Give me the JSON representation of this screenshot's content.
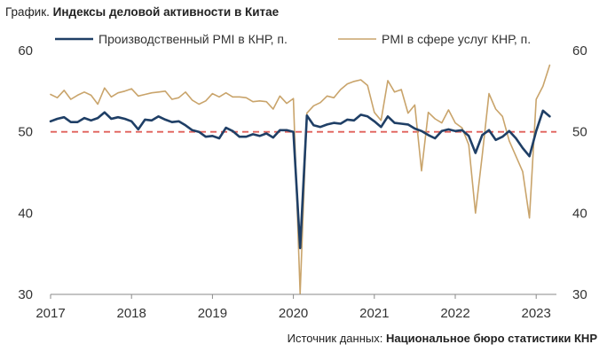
{
  "title": {
    "prefix": "График.",
    "text": "Индексы деловой активности в Китае"
  },
  "source": {
    "prefix": "Источник данных:",
    "text": "Национальное бюро статистики КНР"
  },
  "colors": {
    "manufacturing": "#1f3f66",
    "services": "#c9a46b",
    "threshold": "#e0605a"
  },
  "chart_data": {
    "type": "line",
    "title": "Индексы деловой активности в Китае",
    "xlabel": "",
    "ylabel": "",
    "ylim": [
      30,
      60
    ],
    "xlim": [
      2017.0,
      2023.25
    ],
    "grid": false,
    "legend_position": "top",
    "x_ticks": [
      "2017",
      "2018",
      "2019",
      "2020",
      "2021",
      "2022",
      "2023"
    ],
    "y_ticks_left": [
      "60",
      "50",
      "40",
      "30"
    ],
    "y_ticks_right": [
      "60",
      "50",
      "40",
      "30"
    ],
    "reference_line": {
      "value": 50,
      "style": "dashed"
    },
    "series": [
      {
        "name": "Производственный PMI в КНР, п.",
        "color": "#1f3f66",
        "points": [
          [
            "2017-01",
            51.3
          ],
          [
            "2017-02",
            51.6
          ],
          [
            "2017-03",
            51.8
          ],
          [
            "2017-04",
            51.2
          ],
          [
            "2017-05",
            51.2
          ],
          [
            "2017-06",
            51.7
          ],
          [
            "2017-07",
            51.4
          ],
          [
            "2017-08",
            51.7
          ],
          [
            "2017-09",
            52.4
          ],
          [
            "2017-10",
            51.6
          ],
          [
            "2017-11",
            51.8
          ],
          [
            "2017-12",
            51.6
          ],
          [
            "2018-01",
            51.3
          ],
          [
            "2018-02",
            50.3
          ],
          [
            "2018-03",
            51.5
          ],
          [
            "2018-04",
            51.4
          ],
          [
            "2018-05",
            51.9
          ],
          [
            "2018-06",
            51.5
          ],
          [
            "2018-07",
            51.2
          ],
          [
            "2018-08",
            51.3
          ],
          [
            "2018-09",
            50.8
          ],
          [
            "2018-10",
            50.2
          ],
          [
            "2018-11",
            50.0
          ],
          [
            "2018-12",
            49.4
          ],
          [
            "2019-01",
            49.5
          ],
          [
            "2019-02",
            49.2
          ],
          [
            "2019-03",
            50.5
          ],
          [
            "2019-04",
            50.1
          ],
          [
            "2019-05",
            49.4
          ],
          [
            "2019-06",
            49.4
          ],
          [
            "2019-07",
            49.7
          ],
          [
            "2019-08",
            49.5
          ],
          [
            "2019-09",
            49.8
          ],
          [
            "2019-10",
            49.3
          ],
          [
            "2019-11",
            50.2
          ],
          [
            "2019-12",
            50.2
          ],
          [
            "2020-01",
            50.0
          ],
          [
            "2020-02",
            35.7
          ],
          [
            "2020-03",
            52.0
          ],
          [
            "2020-04",
            50.8
          ],
          [
            "2020-05",
            50.6
          ],
          [
            "2020-06",
            50.9
          ],
          [
            "2020-07",
            51.1
          ],
          [
            "2020-08",
            51.0
          ],
          [
            "2020-09",
            51.5
          ],
          [
            "2020-10",
            51.4
          ],
          [
            "2020-11",
            52.1
          ],
          [
            "2020-12",
            51.9
          ],
          [
            "2021-01",
            51.3
          ],
          [
            "2021-02",
            50.6
          ],
          [
            "2021-03",
            51.9
          ],
          [
            "2021-04",
            51.1
          ],
          [
            "2021-05",
            51.0
          ],
          [
            "2021-06",
            50.9
          ],
          [
            "2021-07",
            50.4
          ],
          [
            "2021-08",
            50.1
          ],
          [
            "2021-09",
            49.6
          ],
          [
            "2021-10",
            49.2
          ],
          [
            "2021-11",
            50.1
          ],
          [
            "2021-12",
            50.3
          ],
          [
            "2022-01",
            50.1
          ],
          [
            "2022-02",
            50.2
          ],
          [
            "2022-03",
            49.5
          ],
          [
            "2022-04",
            47.4
          ],
          [
            "2022-05",
            49.6
          ],
          [
            "2022-06",
            50.2
          ],
          [
            "2022-07",
            49.0
          ],
          [
            "2022-08",
            49.4
          ],
          [
            "2022-09",
            50.1
          ],
          [
            "2022-10",
            49.2
          ],
          [
            "2022-11",
            48.0
          ],
          [
            "2022-12",
            47.0
          ],
          [
            "2023-01",
            50.1
          ],
          [
            "2023-02",
            52.6
          ],
          [
            "2023-03",
            51.9
          ]
        ]
      },
      {
        "name": "PMI в сфере услуг КНР, п.",
        "color": "#c9a46b",
        "points": [
          [
            "2017-01",
            54.6
          ],
          [
            "2017-02",
            54.2
          ],
          [
            "2017-03",
            55.1
          ],
          [
            "2017-04",
            54.0
          ],
          [
            "2017-05",
            54.5
          ],
          [
            "2017-06",
            54.9
          ],
          [
            "2017-07",
            54.5
          ],
          [
            "2017-08",
            53.4
          ],
          [
            "2017-09",
            55.4
          ],
          [
            "2017-10",
            54.3
          ],
          [
            "2017-11",
            54.8
          ],
          [
            "2017-12",
            55.0
          ],
          [
            "2018-01",
            55.3
          ],
          [
            "2018-02",
            54.4
          ],
          [
            "2018-03",
            54.6
          ],
          [
            "2018-04",
            54.8
          ],
          [
            "2018-05",
            54.9
          ],
          [
            "2018-06",
            55.0
          ],
          [
            "2018-07",
            54.0
          ],
          [
            "2018-08",
            54.2
          ],
          [
            "2018-09",
            54.9
          ],
          [
            "2018-10",
            53.9
          ],
          [
            "2018-11",
            53.4
          ],
          [
            "2018-12",
            53.8
          ],
          [
            "2019-01",
            54.7
          ],
          [
            "2019-02",
            54.3
          ],
          [
            "2019-03",
            54.8
          ],
          [
            "2019-04",
            54.3
          ],
          [
            "2019-05",
            54.3
          ],
          [
            "2019-06",
            54.2
          ],
          [
            "2019-07",
            53.7
          ],
          [
            "2019-08",
            53.8
          ],
          [
            "2019-09",
            53.7
          ],
          [
            "2019-10",
            52.8
          ],
          [
            "2019-11",
            54.4
          ],
          [
            "2019-12",
            53.5
          ],
          [
            "2020-01",
            54.1
          ],
          [
            "2020-02",
            30.1
          ],
          [
            "2020-03",
            52.3
          ],
          [
            "2020-04",
            53.2
          ],
          [
            "2020-05",
            53.6
          ],
          [
            "2020-06",
            54.4
          ],
          [
            "2020-07",
            54.2
          ],
          [
            "2020-08",
            55.2
          ],
          [
            "2020-09",
            55.9
          ],
          [
            "2020-10",
            56.2
          ],
          [
            "2020-11",
            56.4
          ],
          [
            "2020-12",
            55.7
          ],
          [
            "2021-01",
            52.4
          ],
          [
            "2021-02",
            51.4
          ],
          [
            "2021-03",
            56.3
          ],
          [
            "2021-04",
            54.9
          ],
          [
            "2021-05",
            55.2
          ],
          [
            "2021-06",
            52.3
          ],
          [
            "2021-07",
            53.3
          ],
          [
            "2021-08",
            45.2
          ],
          [
            "2021-09",
            52.4
          ],
          [
            "2021-10",
            51.6
          ],
          [
            "2021-11",
            51.1
          ],
          [
            "2021-12",
            52.7
          ],
          [
            "2022-01",
            51.1
          ],
          [
            "2022-02",
            50.5
          ],
          [
            "2022-03",
            48.4
          ],
          [
            "2022-04",
            40.0
          ],
          [
            "2022-05",
            47.1
          ],
          [
            "2022-06",
            54.7
          ],
          [
            "2022-07",
            52.8
          ],
          [
            "2022-08",
            51.9
          ],
          [
            "2022-09",
            48.9
          ],
          [
            "2022-10",
            47.0
          ],
          [
            "2022-11",
            45.1
          ],
          [
            "2022-12",
            39.4
          ],
          [
            "2023-01",
            54.0
          ],
          [
            "2023-02",
            55.6
          ],
          [
            "2023-03",
            58.2
          ]
        ]
      }
    ]
  }
}
